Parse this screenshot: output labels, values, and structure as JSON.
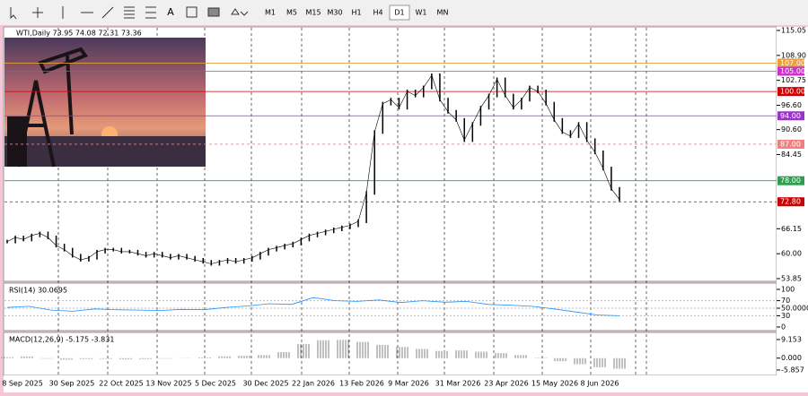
{
  "toolbar": {
    "timeframes": [
      "M1",
      "M5",
      "M15",
      "M30",
      "H1",
      "H4",
      "D1",
      "W1",
      "MN"
    ],
    "active": "D1"
  },
  "main": {
    "header": "WTI,Daily  73.95 74.08 72.31 73.36",
    "ylim": [
      53.85,
      115.05
    ],
    "yticks": [
      {
        "value": 115.05,
        "label": "115.05"
      },
      {
        "value": 108.9,
        "label": "108.90"
      },
      {
        "value": 102.75,
        "label": "102.75"
      },
      {
        "value": 96.6,
        "label": "96.60"
      },
      {
        "value": 90.6,
        "label": "90.60"
      },
      {
        "value": 84.45,
        "label": "84.45"
      },
      {
        "value": 66.15,
        "label": "66.15"
      },
      {
        "value": 60,
        "label": "60.00"
      },
      {
        "value": 53.85,
        "label": "53.85"
      }
    ],
    "levels": [
      {
        "value": 107,
        "label": "107.00",
        "color": "#e6a040",
        "dashed": false
      },
      {
        "value": 105,
        "label": "105.00",
        "color": "#cc33cc",
        "dashed": false
      },
      {
        "value": 100,
        "label": "100.00",
        "color": "#cc0000",
        "dashed": false
      },
      {
        "value": 94,
        "label": "94.00",
        "color": "#9933cc",
        "dashed": false
      },
      {
        "value": 87,
        "label": "87.00",
        "color": "#f08080",
        "dashed": true
      },
      {
        "value": 78,
        "label": "78.00",
        "color": "#2e9e4f",
        "dashed": false
      },
      {
        "value": 72.8,
        "label": "72.80",
        "color": "#cc0000",
        "dashed": true
      }
    ],
    "close": [
      63,
      64,
      63.5,
      64.5,
      65,
      64,
      62,
      61,
      59.5,
      58.5,
      59,
      60.5,
      61,
      61,
      60.5,
      60.5,
      60,
      59.5,
      60,
      59.5,
      59,
      59.5,
      59,
      58.5,
      58,
      57.5,
      58,
      58.5,
      58,
      58.5,
      59,
      60,
      61,
      61.5,
      62,
      62.5,
      63.5,
      64.5,
      65,
      65.5,
      66,
      66.5,
      67,
      68,
      75,
      90,
      97,
      98,
      96,
      100,
      99,
      101,
      104,
      98,
      95,
      93,
      88,
      92,
      96,
      99,
      103,
      99,
      96,
      98,
      101,
      100,
      97,
      93,
      90,
      89,
      92,
      88,
      85,
      81,
      76,
      73.36
    ],
    "color": "#000000"
  },
  "rsi": {
    "header": "RSI(14) 30.0695",
    "ylim": [
      0,
      100
    ],
    "yticks": [
      100,
      70,
      {
        "value": 50,
        "label": "50.0000"
      },
      30,
      0
    ],
    "values": [
      52,
      55,
      45,
      42,
      48,
      46,
      45,
      44,
      47,
      46,
      52,
      56,
      62,
      60,
      78,
      70,
      68,
      72,
      65,
      70,
      66,
      68,
      60,
      58,
      55,
      48,
      40,
      32,
      30.0695
    ],
    "color": "#1e90ff"
  },
  "macd": {
    "header": "MACD(12,26,9) -5.175 -3.831",
    "ylim": [
      -5.857,
      9.153
    ],
    "yticks": [
      {
        "value": 9.153,
        "label": "9.153"
      },
      {
        "value": 0,
        "label": "0.000"
      },
      {
        "value": -5.857,
        "label": "-5.857"
      }
    ],
    "values": [
      0.5,
      0.8,
      -0.3,
      -0.8,
      -0.5,
      -0.4,
      -0.6,
      -0.5,
      -0.3,
      0.1,
      0.4,
      0.9,
      1.2,
      1.5,
      3,
      7,
      8.8,
      9,
      8,
      6.5,
      5.5,
      4.5,
      3.5,
      3.8,
      3.2,
      2.5,
      1.5,
      0.2,
      -1.5,
      -3,
      -4.5,
      -5.175
    ],
    "color": "#808080"
  },
  "dates": [
    "8 Sep 2025",
    "30 Sep 2025",
    "22 Oct 2025",
    "13 Nov 2025",
    "5 Dec 2025",
    "30 Dec 2025",
    "22 Jan 2026",
    "13 Feb 2026",
    "9 Mar 2026",
    "31 Mar 2026",
    "23 Apr 2026",
    "15 May 2026",
    "8 Jun 2026"
  ]
}
